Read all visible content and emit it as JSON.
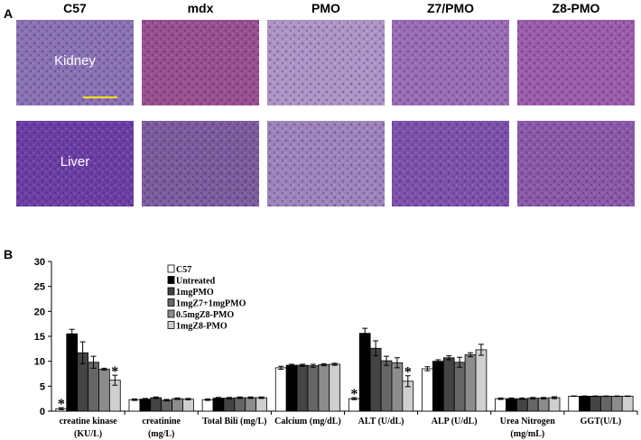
{
  "panel_a": {
    "label": "A",
    "columns": [
      "C57",
      "mdx",
      "PMO",
      "Z7/PMO",
      "Z8-PMO"
    ],
    "rows": [
      "Kidney",
      "Liver"
    ]
  },
  "chart_data": {
    "type": "bar",
    "panel_label": "B",
    "categories": [
      "creatine kinase\n(KU/L)",
      "creatinine\n(mg/L)",
      "Total Bili (mg/L)",
      "Calcium (mg/dL)",
      "ALT (U/dL)",
      "ALP (U/dL)",
      "Urea Nitrogen\n(mg/mL)",
      "GGT(U/L)"
    ],
    "ylim": [
      0,
      30
    ],
    "yticks": [
      0,
      5,
      10,
      15,
      20,
      25,
      30
    ],
    "significance_marker": "*",
    "series": [
      {
        "name": "C57",
        "color": "#ffffff",
        "values": [
          0.5,
          2.3,
          2.3,
          8.7,
          2.5,
          8.5,
          2.5,
          3
        ],
        "errors": [
          0.2,
          0.15,
          0.15,
          0.3,
          0.2,
          0.4,
          0.15,
          0.05
        ],
        "significant": [
          true,
          false,
          false,
          false,
          true,
          false,
          false,
          false
        ]
      },
      {
        "name": "Untreated",
        "color": "#000000",
        "values": [
          15.5,
          2.4,
          2.6,
          9.2,
          15.6,
          10,
          2.5,
          3
        ],
        "errors": [
          0.9,
          0.15,
          0.15,
          0.2,
          1.0,
          0.3,
          0.15,
          0.05
        ],
        "significant": [
          false,
          false,
          false,
          false,
          false,
          false,
          false,
          false
        ]
      },
      {
        "name": "1mgPMO",
        "color": "#444444",
        "values": [
          11.7,
          2.7,
          2.6,
          9.2,
          12.6,
          10.7,
          2.5,
          3
        ],
        "errors": [
          2.2,
          0.15,
          0.15,
          0.2,
          1.5,
          0.4,
          0.15,
          0.05
        ],
        "significant": [
          false,
          false,
          false,
          false,
          false,
          false,
          false,
          false
        ]
      },
      {
        "name": "1mgZ7+1mgPMO",
        "color": "#666666",
        "values": [
          9.8,
          2.2,
          2.7,
          9.1,
          10.1,
          9.8,
          2.6,
          3
        ],
        "errors": [
          1.2,
          0.15,
          0.15,
          0.3,
          0.9,
          1.0,
          0.15,
          0.05
        ],
        "significant": [
          false,
          false,
          false,
          false,
          false,
          false,
          false,
          false
        ]
      },
      {
        "name": "0.5mgZ8-PMO",
        "color": "#8c8c8c",
        "values": [
          8.4,
          2.5,
          2.7,
          9.3,
          9.7,
          11.3,
          2.6,
          3
        ],
        "errors": [
          0.2,
          0.15,
          0.15,
          0.2,
          1.0,
          0.4,
          0.15,
          0.05
        ],
        "significant": [
          false,
          false,
          false,
          false,
          false,
          false,
          false,
          false
        ]
      },
      {
        "name": "1mgZ8-PMO",
        "color": "#cfcfcf",
        "values": [
          6.2,
          2.4,
          2.7,
          9.4,
          6,
          12.3,
          2.7,
          3
        ],
        "errors": [
          1.0,
          0.15,
          0.15,
          0.2,
          1.1,
          1.1,
          0.2,
          0.05
        ],
        "significant": [
          true,
          false,
          false,
          false,
          true,
          false,
          false,
          false
        ]
      }
    ]
  }
}
